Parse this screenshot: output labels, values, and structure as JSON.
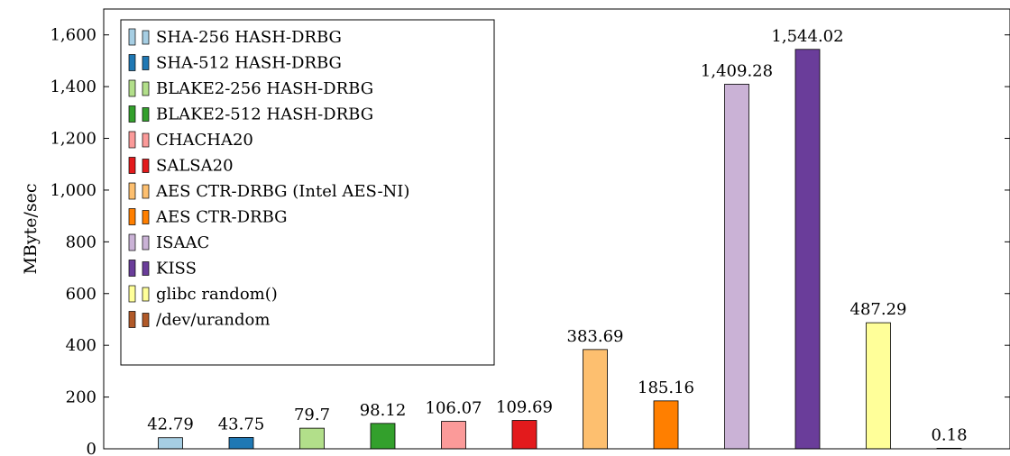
{
  "chart_data": {
    "type": "bar",
    "ylabel": "MByte/sec",
    "ylim": [
      0,
      1700
    ],
    "yticks": [
      0,
      200,
      400,
      600,
      800,
      1000,
      1200,
      1400,
      1600
    ],
    "ytick_labels": [
      "0",
      "200",
      "400",
      "600",
      "800",
      "1,000",
      "1,200",
      "1,400",
      "1,600"
    ],
    "grid": false,
    "legend_position": "top-left",
    "series": [
      {
        "name": "SHA-256 HASH-DRBG",
        "value": 42.79,
        "label": "42.79",
        "color": "#a6cee3"
      },
      {
        "name": "SHA-512 HASH-DRBG",
        "value": 43.75,
        "label": "43.75",
        "color": "#1f78b4"
      },
      {
        "name": "BLAKE2-256 HASH-DRBG",
        "value": 79.7,
        "label": "79.7",
        "color": "#b2df8a"
      },
      {
        "name": "BLAKE2-512 HASH-DRBG",
        "value": 98.12,
        "label": "98.12",
        "color": "#33a02c"
      },
      {
        "name": "CHACHA20",
        "value": 106.07,
        "label": "106.07",
        "color": "#fb9a99"
      },
      {
        "name": "SALSA20",
        "value": 109.69,
        "label": "109.69",
        "color": "#e31a1c"
      },
      {
        "name": "AES CTR-DRBG (Intel AES-NI)",
        "value": 383.69,
        "label": "383.69",
        "color": "#fdbf6f"
      },
      {
        "name": "AES CTR-DRBG",
        "value": 185.16,
        "label": "185.16",
        "color": "#ff7f00"
      },
      {
        "name": "ISAAC",
        "value": 1409.28,
        "label": "1,409.28",
        "color": "#cab2d6"
      },
      {
        "name": "KISS",
        "value": 1544.02,
        "label": "1,544.02",
        "color": "#6a3d9a"
      },
      {
        "name": "glibc random()",
        "value": 487.29,
        "label": "487.29",
        "color": "#ffff99"
      },
      {
        "name": "/dev/urandom",
        "value": 0.18,
        "label": "0.18",
        "color": "#b15928"
      }
    ]
  }
}
